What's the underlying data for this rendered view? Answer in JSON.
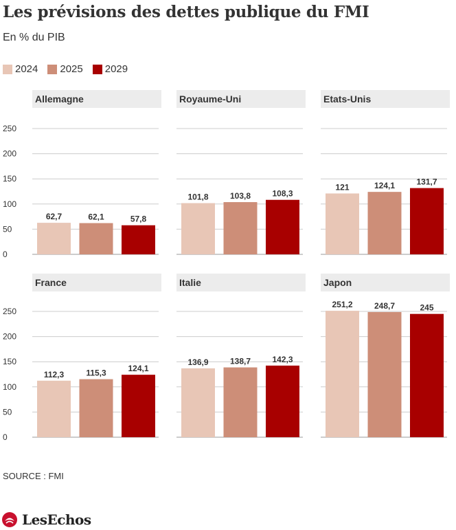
{
  "title": "Les prévisions des dettes publique du FMI",
  "subtitle": "En % du PIB",
  "source": "SOURCE : FMI",
  "logo_text": "LesEchos",
  "colors": {
    "2024": "#e8c6b6",
    "2025": "#cd8e78",
    "2029": "#a80000",
    "grid": "#cccccc",
    "panel_header": "#ececec",
    "logo_red": "#c8102e"
  },
  "legend": [
    {
      "label": "2024",
      "color": "#e8c6b6"
    },
    {
      "label": "2025",
      "color": "#cd8e78"
    },
    {
      "label": "2029",
      "color": "#a80000"
    }
  ],
  "chart_data": {
    "type": "bar",
    "layout": "small-multiples",
    "series_names": [
      "2024",
      "2025",
      "2029"
    ],
    "yticks": [
      "0",
      "50",
      "100",
      "150",
      "200",
      "250"
    ],
    "ylim": [
      0,
      260
    ],
    "grid": true,
    "legend_position": "top-left",
    "panels": [
      {
        "title": "Allemagne",
        "values": [
          62.7,
          62.1,
          57.8
        ],
        "labels": [
          "62,7",
          "62,1",
          "57,8"
        ]
      },
      {
        "title": "Royaume-Uni",
        "values": [
          101.8,
          103.8,
          108.3
        ],
        "labels": [
          "101,8",
          "103,8",
          "108,3"
        ]
      },
      {
        "title": "Etats-Unis",
        "values": [
          121,
          124.1,
          131.7
        ],
        "labels": [
          "121",
          "124,1",
          "131,7"
        ]
      },
      {
        "title": "France",
        "values": [
          112.3,
          115.3,
          124.1
        ],
        "labels": [
          "112,3",
          "115,3",
          "124,1"
        ]
      },
      {
        "title": "Italie",
        "values": [
          136.9,
          138.7,
          142.3
        ],
        "labels": [
          "136,9",
          "138,7",
          "142,3"
        ]
      },
      {
        "title": "Japon",
        "values": [
          251.2,
          248.7,
          245
        ],
        "labels": [
          "251,2",
          "248,7",
          "245"
        ]
      }
    ]
  }
}
